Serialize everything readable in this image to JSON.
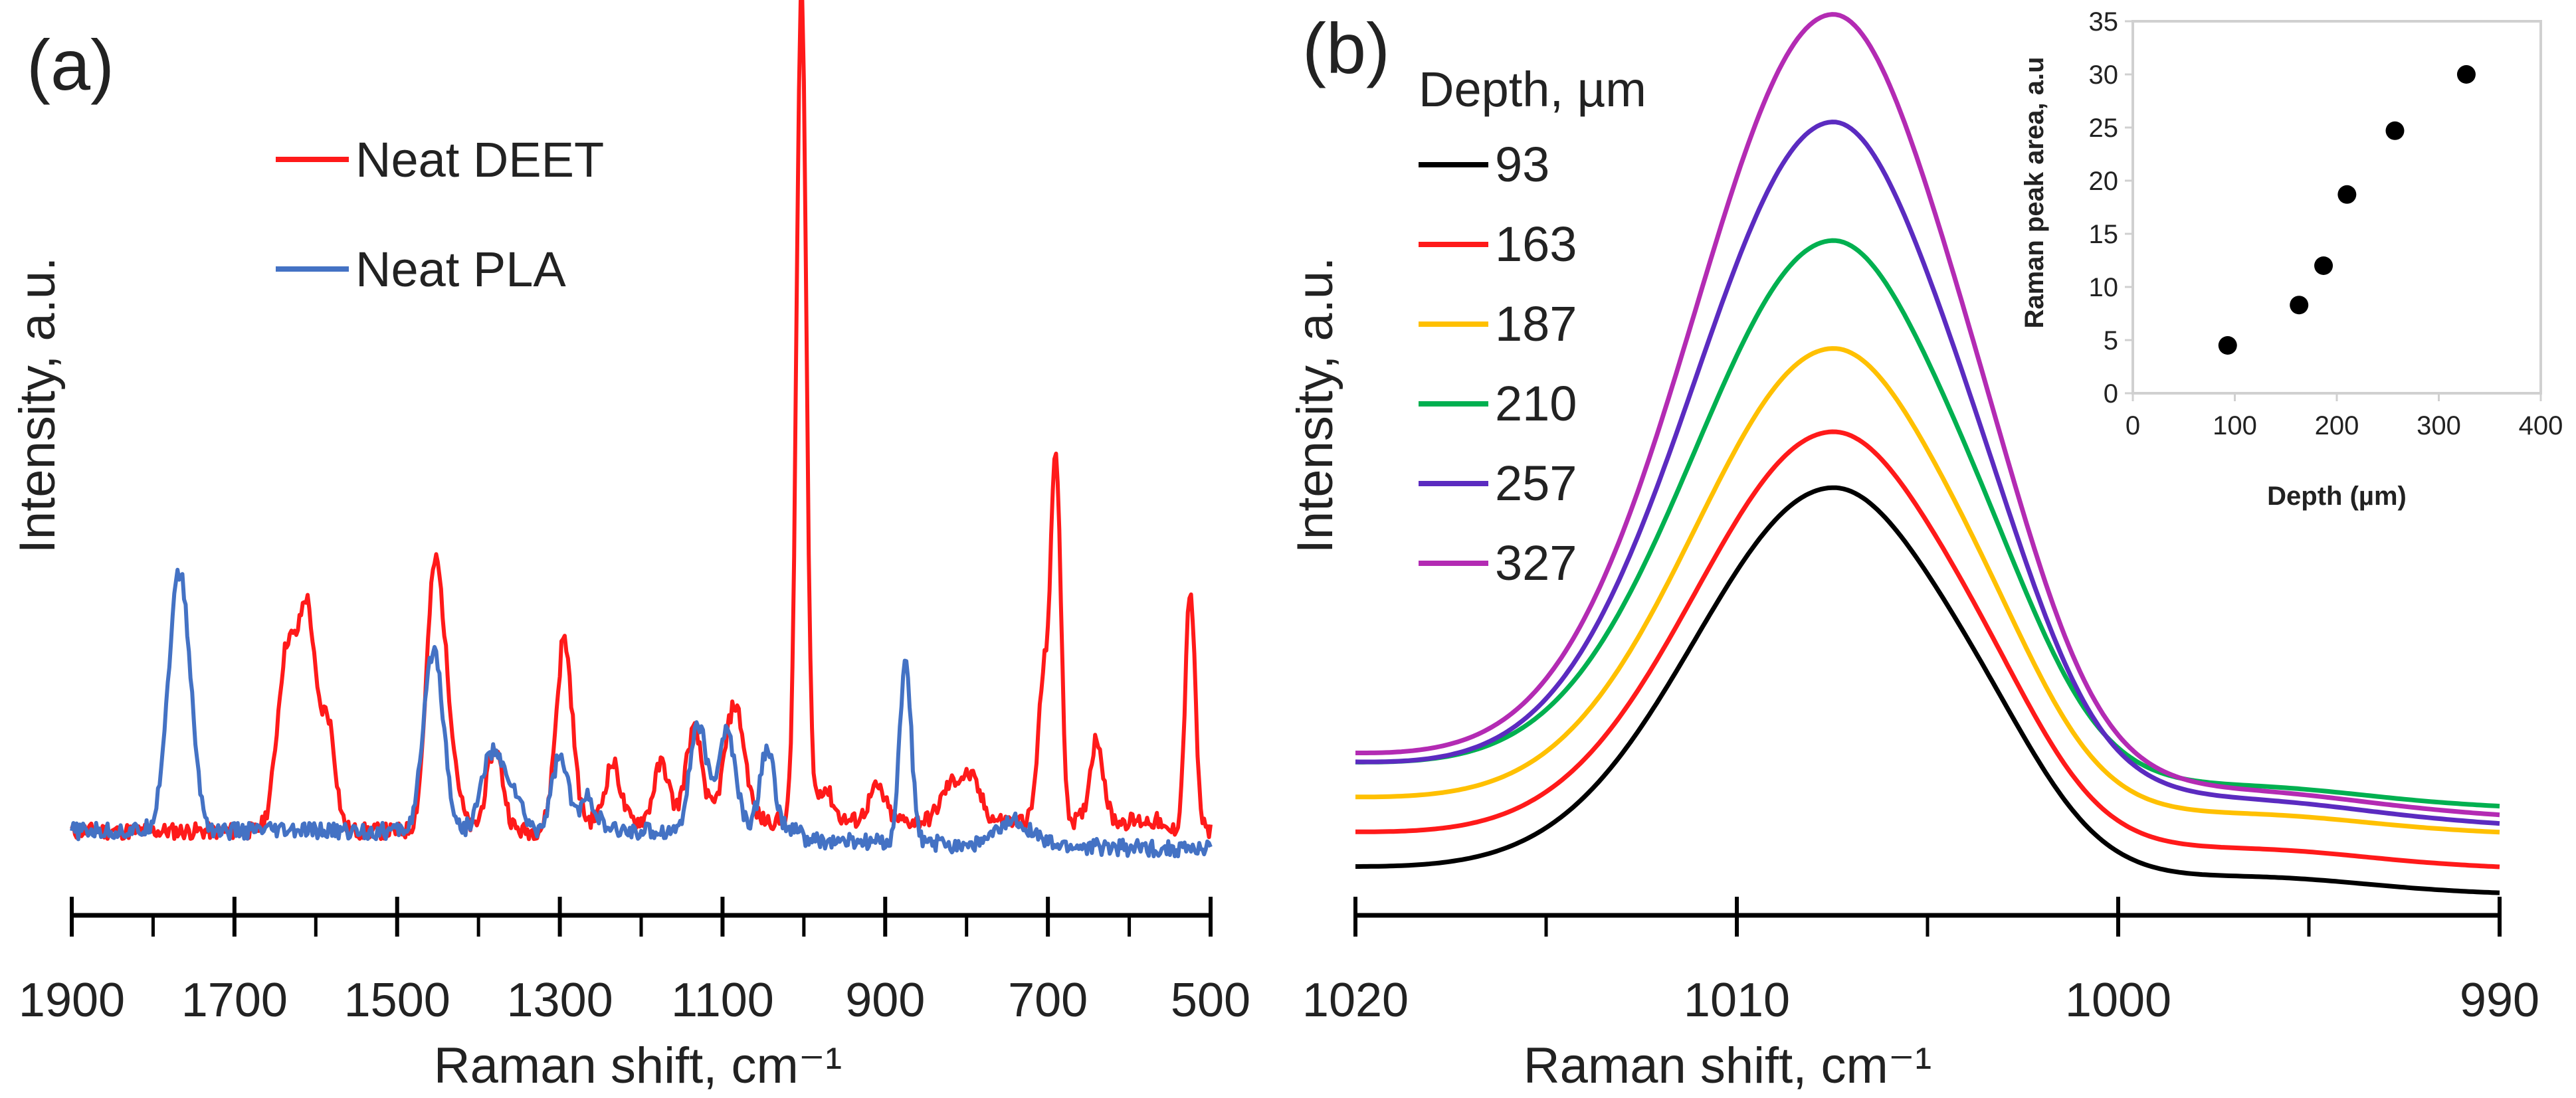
{
  "chart_data": [
    {
      "panel": "(a)",
      "type": "line",
      "xlabel": "Raman shift, cm⁻¹",
      "ylabel": "Intensity, a.u.",
      "xlim": [
        1900,
        500
      ],
      "ylim": [
        0,
        1
      ],
      "x_reversed": true,
      "x_ticks": [
        1900,
        1700,
        1500,
        1300,
        1100,
        900,
        700,
        500
      ],
      "x_tick_labels": [
        "1900",
        "1700",
        "1500",
        "1300",
        "1100",
        "900",
        "700",
        "500"
      ],
      "x_minor_ticks": [
        1800,
        1600,
        1400,
        1200,
        1000,
        800,
        600
      ],
      "legend_location": "top-left",
      "series": [
        {
          "name": "Neat DEET",
          "color": "#ff1a1a",
          "baseline": 0.055,
          "peaks": [
            [
              1635,
              0.22,
              12
            ],
            [
              1610,
              0.25,
              10
            ],
            [
              1585,
              0.13,
              9
            ],
            [
              1455,
              0.26,
              10
            ],
            [
              1440,
              0.13,
              12
            ],
            [
              1380,
              0.1,
              10
            ],
            [
              1295,
              0.22,
              10
            ],
            [
              1235,
              0.07,
              9
            ],
            [
              1175,
              0.07,
              9
            ],
            [
              1135,
              0.11,
              10
            ],
            [
              1085,
              0.14,
              12
            ],
            [
              1003,
              1.0,
              6
            ],
            [
              975,
              0.04,
              10
            ],
            [
              910,
              0.04,
              10
            ],
            [
              820,
              0.04,
              12
            ],
            [
              795,
              0.05,
              12
            ],
            [
              705,
              0.17,
              7
            ],
            [
              690,
              0.43,
              6
            ],
            [
              640,
              0.1,
              8
            ],
            [
              525,
              0.29,
              6
            ]
          ],
          "x_range": [
            1900,
            500
          ]
        },
        {
          "name": "Neat PLA",
          "color": "#4472c4",
          "baseline": 0.055,
          "peaks": [
            [
              1770,
              0.25,
              13
            ],
            [
              1760,
              0.08,
              12
            ],
            [
              1455,
              0.22,
              12
            ],
            [
              1385,
              0.09,
              12
            ],
            [
              1360,
              0.05,
              12
            ],
            [
              1300,
              0.09,
              10
            ],
            [
              1265,
              0.04,
              10
            ],
            [
              1130,
              0.13,
              10
            ],
            [
              1095,
              0.12,
              11
            ],
            [
              1045,
              0.1,
              9
            ],
            [
              875,
              0.22,
              7
            ],
            [
              740,
              0.03,
              20
            ]
          ],
          "x_range": [
            1900,
            500
          ]
        }
      ]
    },
    {
      "panel": "(b)",
      "type": "line",
      "xlabel": "Raman shift, cm⁻¹",
      "ylabel": "Intensity, a.u.",
      "xlim": [
        1020,
        990
      ],
      "ylim": [
        0,
        1
      ],
      "x_reversed": true,
      "x_ticks": [
        1020,
        1010,
        1000,
        990
      ],
      "x_tick_labels": [
        "1020",
        "1010",
        "1000",
        "990"
      ],
      "x_minor_ticks": [
        1015,
        1005,
        995
      ],
      "legend_title": "Depth, µm",
      "legend_location": "top-left",
      "peak_center": 1007.5,
      "series": [
        {
          "name": "93",
          "color": "#000000",
          "peak": 0.46,
          "base_left": 0.03,
          "base_right": 0.0,
          "shoulder": 0.04
        },
        {
          "name": "163",
          "color": "#ff1a1a",
          "peak": 0.51,
          "base_left": 0.07,
          "base_right": 0.03,
          "shoulder": 0.045
        },
        {
          "name": "187",
          "color": "#ffc000",
          "peak": 0.59,
          "base_left": 0.11,
          "base_right": 0.07,
          "shoulder": 0.05
        },
        {
          "name": "210",
          "color": "#00b050",
          "peak": 0.7,
          "base_left": 0.15,
          "base_right": 0.1,
          "shoulder": 0.055
        },
        {
          "name": "257",
          "color": "#5b2bc0",
          "peak": 0.84,
          "base_left": 0.15,
          "base_right": 0.08,
          "shoulder": 0.06
        },
        {
          "name": "327",
          "color": "#b32bb3",
          "peak": 0.96,
          "base_left": 0.16,
          "base_right": 0.09,
          "shoulder": 0.065
        }
      ]
    },
    {
      "panel": "inset",
      "type": "scatter",
      "xlabel": "Depth (µm)",
      "ylabel": "Raman  peak area, a.u",
      "xlim": [
        0,
        400
      ],
      "ylim": [
        0,
        35
      ],
      "x_ticks": [
        0,
        100,
        200,
        300,
        400
      ],
      "y_ticks": [
        0,
        5,
        10,
        15,
        20,
        25,
        30,
        35
      ],
      "x_tick_labels": [
        "0",
        "100",
        "200",
        "300",
        "400"
      ],
      "y_tick_labels": [
        "0",
        "5",
        "10",
        "15",
        "20",
        "25",
        "30",
        "35"
      ],
      "marker_color": "#000000",
      "points": [
        [
          93,
          4.5
        ],
        [
          163,
          8.3
        ],
        [
          187,
          12.0
        ],
        [
          210,
          18.7
        ],
        [
          257,
          24.7
        ],
        [
          327,
          30.0
        ]
      ]
    }
  ]
}
